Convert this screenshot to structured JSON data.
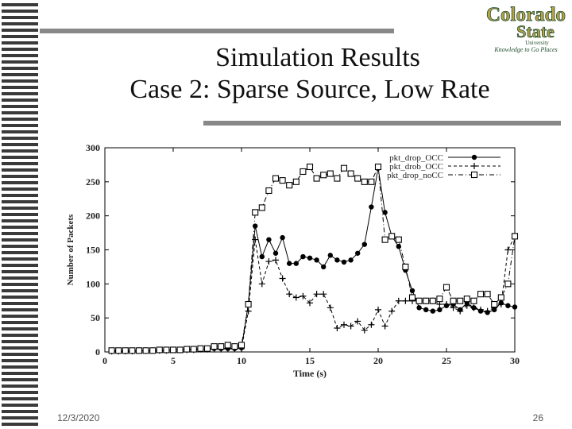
{
  "slide": {
    "title_line1": "Simulation Results",
    "title_line2": "Case 2: Sparse Source, Low Rate",
    "date": "12/3/2020",
    "page_number": "26"
  },
  "logo": {
    "line1": "Colorado",
    "line2": "State",
    "line3": "University",
    "tagline": "Knowledge to Go Places"
  },
  "colors": {
    "accent_bar": "#888888",
    "logo_gold": "#b8a24a",
    "logo_green": "#1e4d2b"
  },
  "chart_data": {
    "type": "line",
    "xlabel": "Time (s)",
    "ylabel": "Number of Packets",
    "xlim": [
      0,
      30
    ],
    "ylim": [
      0,
      300
    ],
    "xticks": [
      "0",
      "5",
      "10",
      "15",
      "20",
      "25",
      "30"
    ],
    "yticks": [
      "0",
      "50",
      "100",
      "150",
      "200",
      "250",
      "300"
    ],
    "legend_position": "top-right",
    "series": [
      {
        "name": "pkt_drop_OCC",
        "marker": "circle",
        "line_style": "solid",
        "x": [
          0.5,
          1,
          1.5,
          2,
          2.5,
          3,
          3.5,
          4,
          4.5,
          5,
          5.5,
          6,
          6.5,
          7,
          7.5,
          8,
          8.5,
          9,
          9.5,
          10,
          10.5,
          11,
          11.5,
          12,
          12.5,
          13,
          13.5,
          14,
          14.5,
          15,
          15.5,
          16,
          16.5,
          17,
          17.5,
          18,
          18.5,
          19,
          19.5,
          20,
          20.5,
          21,
          21.5,
          22,
          22.5,
          23,
          23.5,
          24,
          24.5,
          25,
          25.5,
          26,
          26.5,
          27,
          27.5,
          28,
          28.5,
          29,
          29.5,
          30
        ],
        "y": [
          1,
          1,
          1,
          2,
          2,
          2,
          2,
          2,
          3,
          3,
          3,
          4,
          4,
          4,
          4,
          5,
          5,
          5,
          5,
          6,
          70,
          185,
          140,
          165,
          145,
          168,
          130,
          130,
          140,
          138,
          135,
          125,
          142,
          135,
          132,
          135,
          145,
          158,
          213,
          270,
          205,
          170,
          155,
          120,
          90,
          65,
          62,
          60,
          62,
          68,
          70,
          62,
          72,
          65,
          60,
          58,
          62,
          72,
          68,
          66
        ]
      },
      {
        "name": "pkt_drob_OCC",
        "marker": "plus",
        "line_style": "dashed",
        "x": [
          0.5,
          1,
          1.5,
          2,
          2.5,
          3,
          3.5,
          4,
          4.5,
          5,
          5.5,
          6,
          6.5,
          7,
          7.5,
          8,
          8.5,
          9,
          9.5,
          10,
          10.5,
          11,
          11.5,
          12,
          12.5,
          13,
          13.5,
          14,
          14.5,
          15,
          15.5,
          16,
          16.5,
          17,
          17.5,
          18,
          18.5,
          19,
          19.5,
          20,
          20.5,
          21,
          21.5,
          22,
          22.5,
          23,
          23.5,
          24,
          24.5,
          25,
          25.5,
          26,
          26.5,
          27,
          27.5,
          28,
          28.5,
          29,
          29.5,
          30
        ],
        "y": [
          1,
          1,
          1,
          1,
          2,
          2,
          2,
          2,
          2,
          3,
          3,
          3,
          3,
          4,
          4,
          4,
          4,
          5,
          5,
          5,
          60,
          165,
          100,
          133,
          135,
          108,
          85,
          80,
          82,
          72,
          85,
          85,
          65,
          35,
          40,
          38,
          45,
          32,
          40,
          62,
          38,
          60,
          75,
          75,
          75,
          75,
          75,
          75,
          70,
          70,
          65,
          60,
          68,
          65,
          62,
          60,
          65,
          70,
          150,
          170
        ]
      },
      {
        "name": "pkt_drop_noCC",
        "marker": "square",
        "line_style": "dash-dot",
        "x": [
          0.5,
          1,
          1.5,
          2,
          2.5,
          3,
          3.5,
          4,
          4.5,
          5,
          5.5,
          6,
          6.5,
          7,
          7.5,
          8,
          8.5,
          9,
          9.5,
          10,
          10.5,
          11,
          11.5,
          12,
          12.5,
          13,
          13.5,
          14,
          14.5,
          15,
          15.5,
          16,
          16.5,
          17,
          17.5,
          18,
          18.5,
          19,
          19.5,
          20,
          20.5,
          21,
          21.5,
          22,
          22.5,
          23,
          23.5,
          24,
          24.5,
          25,
          25.5,
          26,
          26.5,
          27,
          27.5,
          28,
          28.5,
          29,
          29.5,
          30
        ],
        "y": [
          2,
          2,
          2,
          2,
          2,
          2,
          2,
          3,
          3,
          3,
          3,
          4,
          4,
          5,
          5,
          8,
          8,
          10,
          8,
          10,
          70,
          205,
          212,
          237,
          255,
          252,
          245,
          250,
          265,
          272,
          255,
          260,
          262,
          255,
          270,
          262,
          255,
          250,
          250,
          272,
          165,
          170,
          165,
          125,
          80,
          75,
          75,
          75,
          78,
          95,
          75,
          75,
          78,
          75,
          85,
          85,
          70,
          80,
          100,
          170
        ]
      }
    ]
  }
}
